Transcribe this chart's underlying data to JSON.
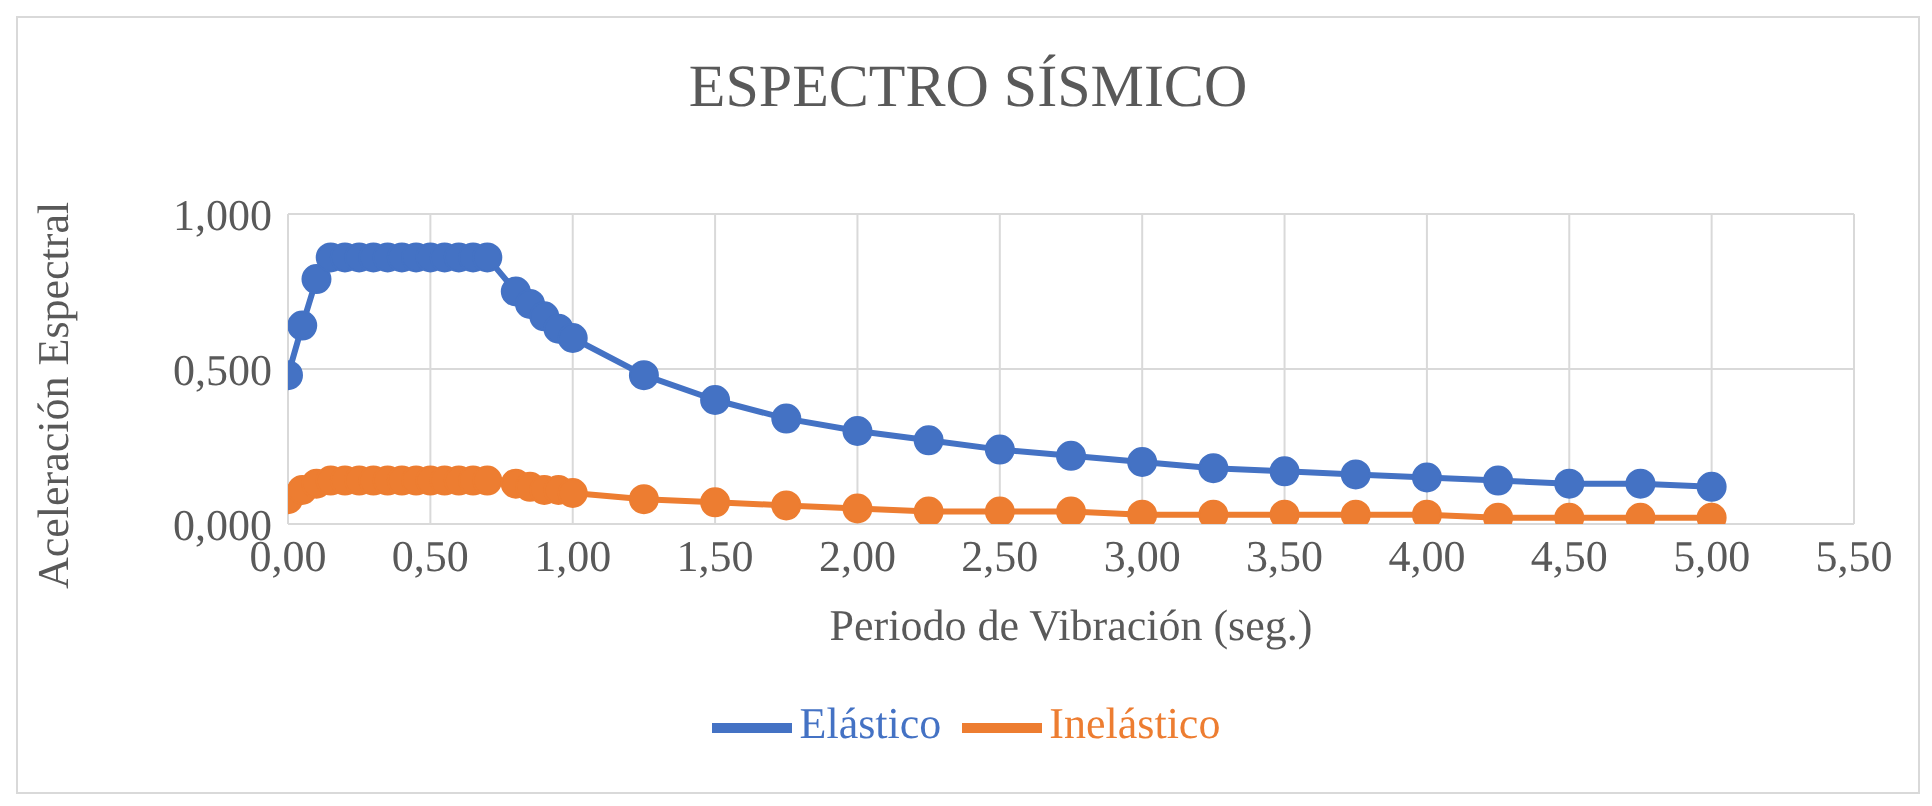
{
  "chart_data": {
    "type": "line",
    "title": "ESPECTRO SÍSMICO",
    "xlabel": "Periodo de Vibración (seg.)",
    "ylabel": "Aceleración Espectral",
    "x": [
      0,
      0.05,
      0.1,
      0.15,
      0.2,
      0.25,
      0.3,
      0.35,
      0.4,
      0.45,
      0.5,
      0.55,
      0.6,
      0.65,
      0.7,
      0.8,
      0.85,
      0.9,
      0.95,
      1.0,
      1.25,
      1.5,
      1.75,
      2.0,
      2.25,
      2.5,
      2.75,
      3.0,
      3.25,
      3.5,
      3.75,
      4.0,
      4.25,
      4.5,
      4.75,
      5.0
    ],
    "series": [
      {
        "name": "Elástico",
        "color": "#4472c4",
        "values": [
          0.48,
          0.64,
          0.79,
          0.86,
          0.86,
          0.86,
          0.86,
          0.86,
          0.86,
          0.86,
          0.86,
          0.86,
          0.86,
          0.86,
          0.86,
          0.75,
          0.71,
          0.67,
          0.63,
          0.6,
          0.48,
          0.4,
          0.34,
          0.3,
          0.27,
          0.24,
          0.22,
          0.2,
          0.18,
          0.17,
          0.16,
          0.15,
          0.14,
          0.13,
          0.13,
          0.12
        ]
      },
      {
        "name": "Inelástico",
        "color": "#ed7d31",
        "values": [
          0.08,
          0.11,
          0.13,
          0.14,
          0.14,
          0.14,
          0.14,
          0.14,
          0.14,
          0.14,
          0.14,
          0.14,
          0.14,
          0.14,
          0.14,
          0.13,
          0.12,
          0.11,
          0.11,
          0.1,
          0.08,
          0.07,
          0.06,
          0.05,
          0.04,
          0.04,
          0.04,
          0.03,
          0.03,
          0.03,
          0.03,
          0.03,
          0.02,
          0.02,
          0.02,
          0.02
        ]
      }
    ],
    "xlim": [
      0,
      5.5
    ],
    "xticks": [
      {
        "value": 0,
        "label": "0,00"
      },
      {
        "value": 0.5,
        "label": "0,50"
      },
      {
        "value": 1,
        "label": "1,00"
      },
      {
        "value": 1.5,
        "label": "1,50"
      },
      {
        "value": 2,
        "label": "2,00"
      },
      {
        "value": 2.5,
        "label": "2,50"
      },
      {
        "value": 3,
        "label": "3,00"
      },
      {
        "value": 3.5,
        "label": "3,50"
      },
      {
        "value": 4,
        "label": "4,00"
      },
      {
        "value": 4.5,
        "label": "4,50"
      },
      {
        "value": 5,
        "label": "5,00"
      },
      {
        "value": 5.5,
        "label": "5,50"
      }
    ],
    "ylim": [
      0,
      1
    ],
    "yticks": [
      {
        "value": 0,
        "label": "0,000"
      },
      {
        "value": 0.5,
        "label": "0,500"
      },
      {
        "value": 1,
        "label": "1,000"
      }
    ],
    "grid": true,
    "legend": "bottom",
    "marker": "circle",
    "line_style": "solid"
  }
}
